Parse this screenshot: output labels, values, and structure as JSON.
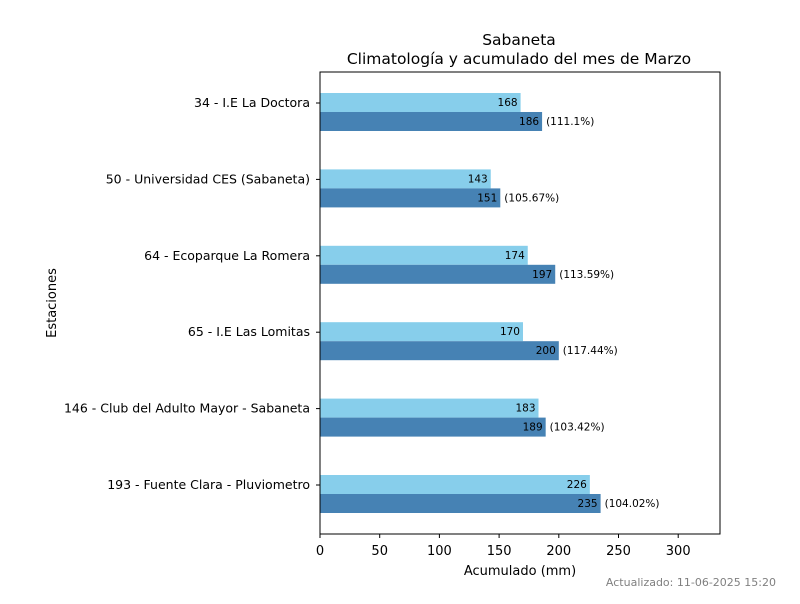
{
  "chart_data": {
    "type": "bar",
    "orientation": "horizontal",
    "title": "Sabaneta",
    "subtitle": "Climatología y acumulado del mes de Marzo",
    "xlabel": "Acumulado (mm)",
    "ylabel": "Estaciones",
    "xlim": [
      0,
      335
    ],
    "xticks": [
      0,
      50,
      100,
      150,
      200,
      250,
      300
    ],
    "grid": false,
    "categories": [
      "34 - I.E La Doctora",
      "50 - Universidad CES (Sabaneta)",
      "64 - Ecoparque La Romera",
      "65 - I.E Las Lomitas",
      "146 - Club del Adulto Mayor - Sabaneta",
      "193 - Fuente Clara - Pluviometro"
    ],
    "series": [
      {
        "values": [
          168,
          143,
          174,
          170,
          183,
          226
        ],
        "color": "#87ceeb"
      },
      {
        "values": [
          186,
          151,
          197,
          200,
          189,
          235
        ],
        "color": "#4682b4"
      }
    ],
    "percent_labels": [
      "(111.1%)",
      "(105.67%)",
      "(113.59%)",
      "(117.44%)",
      "(103.42%)",
      "(104.02%)"
    ]
  },
  "footer": {
    "updated": "Actualizado: 11-06-2025 15:20"
  }
}
